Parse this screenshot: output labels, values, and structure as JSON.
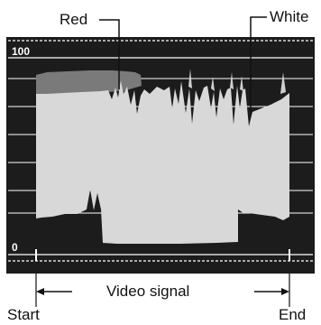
{
  "title": "",
  "callouts": {
    "red": "Red",
    "white": "White"
  },
  "scale": {
    "top": "100",
    "bottom": "0"
  },
  "axis": {
    "label": "Video signal",
    "start": "Start",
    "end": "End"
  },
  "colors": {
    "screen": "#1c1c1c",
    "red_trace": "#7a7a7a",
    "white_trace": "#d8d8d8",
    "graticule": "#ffffff"
  }
}
